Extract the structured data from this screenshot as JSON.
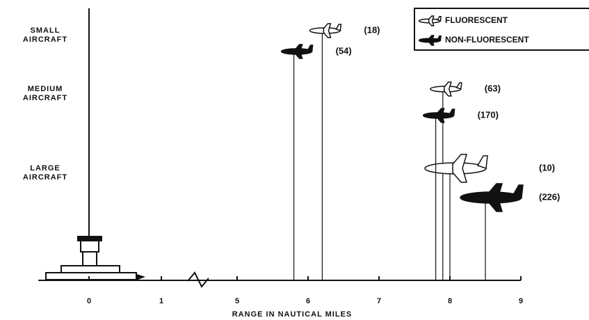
{
  "chart_data": {
    "type": "range",
    "x_label": "RANGE IN NAUTICAL MILES",
    "categories": [
      "SMALL AIRCRAFT",
      "MEDIUM AIRCRAFT",
      "LARGE AIRCRAFT"
    ],
    "series": [
      {
        "name": "FLUORESCENT",
        "color": "#ffffff",
        "values": [
          6.2,
          7.9,
          8.0
        ],
        "count_labels": [
          "(18)",
          "(63)",
          "(10)"
        ]
      },
      {
        "name": "NON-FLUORESCENT",
        "color": "#111111",
        "values": [
          5.8,
          7.8,
          8.5
        ],
        "count_labels": [
          "(54)",
          "(170)",
          "(226)"
        ]
      }
    ],
    "xlim": [
      -0.7,
      9
    ],
    "xticks": [
      0,
      1,
      5,
      6,
      7,
      8,
      9
    ],
    "axis_break": [
      1,
      5
    ],
    "legend": "upper-right"
  }
}
